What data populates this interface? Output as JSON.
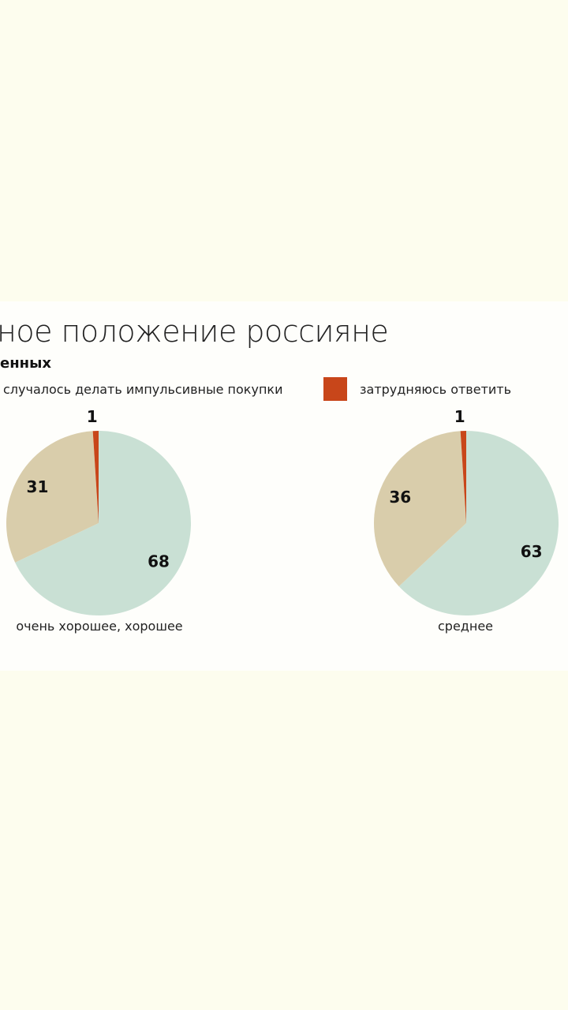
{
  "chart_data": [
    {
      "type": "pie",
      "title": "ное положение россияне",
      "subtitle": "енных",
      "legend": [
        {
          "label": "случалось делать импульсивные покупки"
        },
        {
          "label": "затрудняюсь ответить",
          "color": "#c8461a"
        }
      ],
      "caption": "очень хорошее, хорошее",
      "slices": [
        {
          "value": 68,
          "label": "68",
          "color": "#c9e0d4"
        },
        {
          "value": 31,
          "label": "31",
          "color": "#d9cdab"
        },
        {
          "value": 1,
          "label": "1",
          "color": "#c8461a"
        }
      ]
    },
    {
      "type": "pie",
      "caption": "среднее",
      "slices": [
        {
          "value": 63,
          "label": "63",
          "color": "#c9e0d4"
        },
        {
          "value": 36,
          "label": "36",
          "color": "#d9cdab"
        },
        {
          "value": 1,
          "label": "1",
          "color": "#c8461a"
        }
      ]
    }
  ]
}
